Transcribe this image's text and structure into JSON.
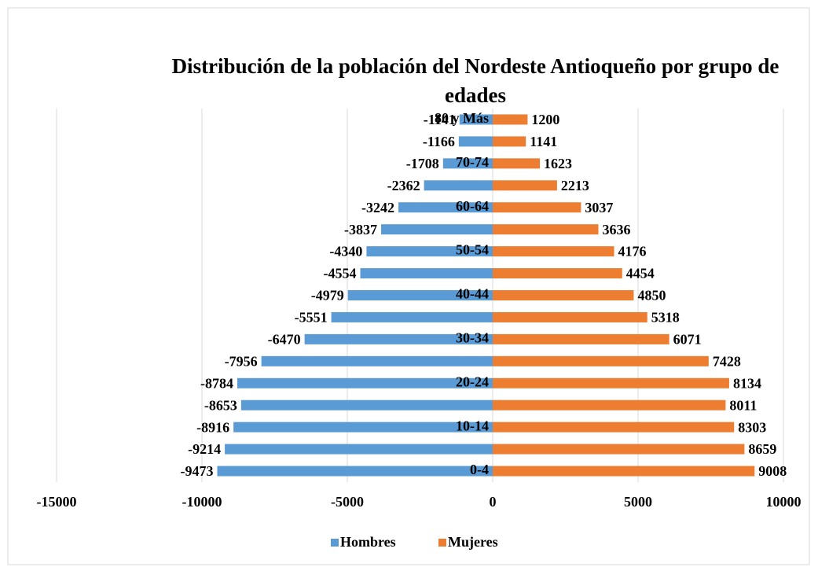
{
  "chart_data": {
    "type": "bar",
    "orientation": "horizontal",
    "stacked": true,
    "title": "Distribución de la población del Nordeste Antioqueño por grupo de edades",
    "categories": [
      "0-4",
      null,
      "10-14",
      null,
      "20-24",
      null,
      "30-34",
      null,
      "40-44",
      null,
      "50-54",
      null,
      "60-64",
      null,
      "70-74",
      null,
      "80 y Más"
    ],
    "series": [
      {
        "name": "Hombres",
        "color": "#5b9bd5",
        "values": [
          -9473,
          -9214,
          -8916,
          -8653,
          -8784,
          -7956,
          -6470,
          -5551,
          -4979,
          -4554,
          -4340,
          -3837,
          -3242,
          -2362,
          -1708,
          -1166,
          -1141
        ]
      },
      {
        "name": "Mujeres",
        "color": "#ed7d31",
        "values": [
          9008,
          8659,
          8303,
          8011,
          8134,
          7428,
          6071,
          5318,
          4850,
          4454,
          4176,
          3636,
          3037,
          2213,
          1623,
          1141,
          1200
        ]
      }
    ],
    "xlim": [
      -15000,
      10000
    ],
    "xticks": [
      -15000,
      -10000,
      -5000,
      0,
      5000,
      10000
    ],
    "grid": true,
    "legend": "bottom"
  }
}
